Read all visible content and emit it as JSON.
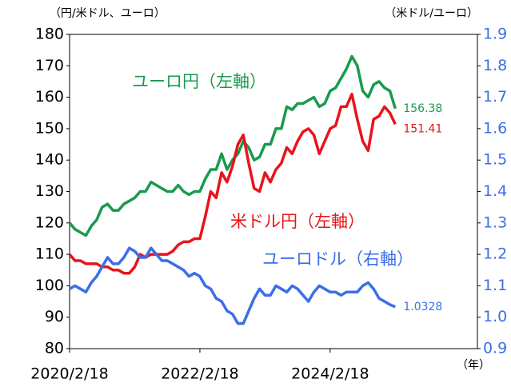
{
  "chart_data": {
    "type": "line",
    "y_axis_label": "（円/米ドル、ユーロ）",
    "y2_axis_label": "（米ドル/ユーロ）",
    "x_axis_label": "（年）",
    "annotations": [
      "ユーロ円（左軸）",
      "米ドル円（左軸）",
      "ユーロドル（右軸）"
    ],
    "xlim": [
      2020.13,
      2026.39
    ],
    "xticks": [
      {
        "value": 2020.13,
        "label": "2020/2/18"
      },
      {
        "value": 2022.13,
        "label": "2022/2/18"
      },
      {
        "value": 2024.13,
        "label": "2024/2/18"
      }
    ],
    "ylim": [
      80,
      180
    ],
    "yticks": [
      80,
      90,
      100,
      110,
      120,
      130,
      140,
      150,
      160,
      170,
      180
    ],
    "y2lim": [
      0.9,
      1.9
    ],
    "y2ticks": [
      0.9,
      {
        "value": 1,
        "label": "1.0"
      },
      1.1,
      1.2,
      1.3,
      1.4,
      1.5,
      1.6,
      1.7,
      1.8,
      1.9
    ],
    "x_start": 2020.13,
    "series": [
      {
        "name": "ユーロ円",
        "color": "#1a9a4e",
        "axis": "y",
        "values": [
          120,
          118,
          117,
          116,
          119,
          121,
          125,
          126,
          124,
          124,
          126,
          127,
          128,
          130,
          130,
          133,
          132,
          131,
          130,
          130,
          132,
          130,
          129,
          130,
          130,
          134,
          137,
          137,
          142,
          137,
          140,
          142,
          146,
          144,
          140,
          141,
          145,
          145,
          150,
          150,
          157,
          156,
          158,
          158,
          159,
          160,
          157,
          158,
          162,
          163,
          166,
          169,
          173,
          170,
          162,
          160,
          164,
          165,
          163,
          162,
          156.38
        ]
      },
      {
        "name": "米ドル円",
        "color": "#e8141b",
        "axis": "y",
        "values": [
          110,
          108,
          108,
          107,
          107,
          107,
          106,
          106,
          105,
          105,
          104,
          104,
          106,
          110,
          109,
          110,
          110,
          110,
          110,
          111,
          113,
          114,
          114,
          115,
          115,
          122,
          130,
          128,
          136,
          133,
          138,
          145,
          148,
          139,
          131,
          130,
          136,
          133,
          137,
          139,
          144,
          142,
          146,
          149,
          150,
          148,
          142,
          146,
          150,
          151,
          157,
          157,
          161,
          153,
          146,
          143,
          153,
          154,
          157,
          155,
          151.41
        ]
      },
      {
        "name": "ユーロドル",
        "color": "#3b6ee8",
        "axis": "y2",
        "values": [
          1.09,
          1.1,
          1.09,
          1.08,
          1.11,
          1.13,
          1.16,
          1.19,
          1.17,
          1.17,
          1.19,
          1.22,
          1.21,
          1.19,
          1.19,
          1.22,
          1.2,
          1.18,
          1.18,
          1.17,
          1.16,
          1.15,
          1.13,
          1.14,
          1.13,
          1.1,
          1.09,
          1.06,
          1.05,
          1.02,
          1.01,
          0.98,
          0.98,
          1.02,
          1.06,
          1.09,
          1.07,
          1.07,
          1.1,
          1.09,
          1.08,
          1.1,
          1.09,
          1.07,
          1.05,
          1.08,
          1.1,
          1.09,
          1.08,
          1.08,
          1.07,
          1.08,
          1.08,
          1.08,
          1.1,
          1.11,
          1.09,
          1.06,
          1.05,
          1.04,
          1.0328
        ]
      }
    ]
  }
}
